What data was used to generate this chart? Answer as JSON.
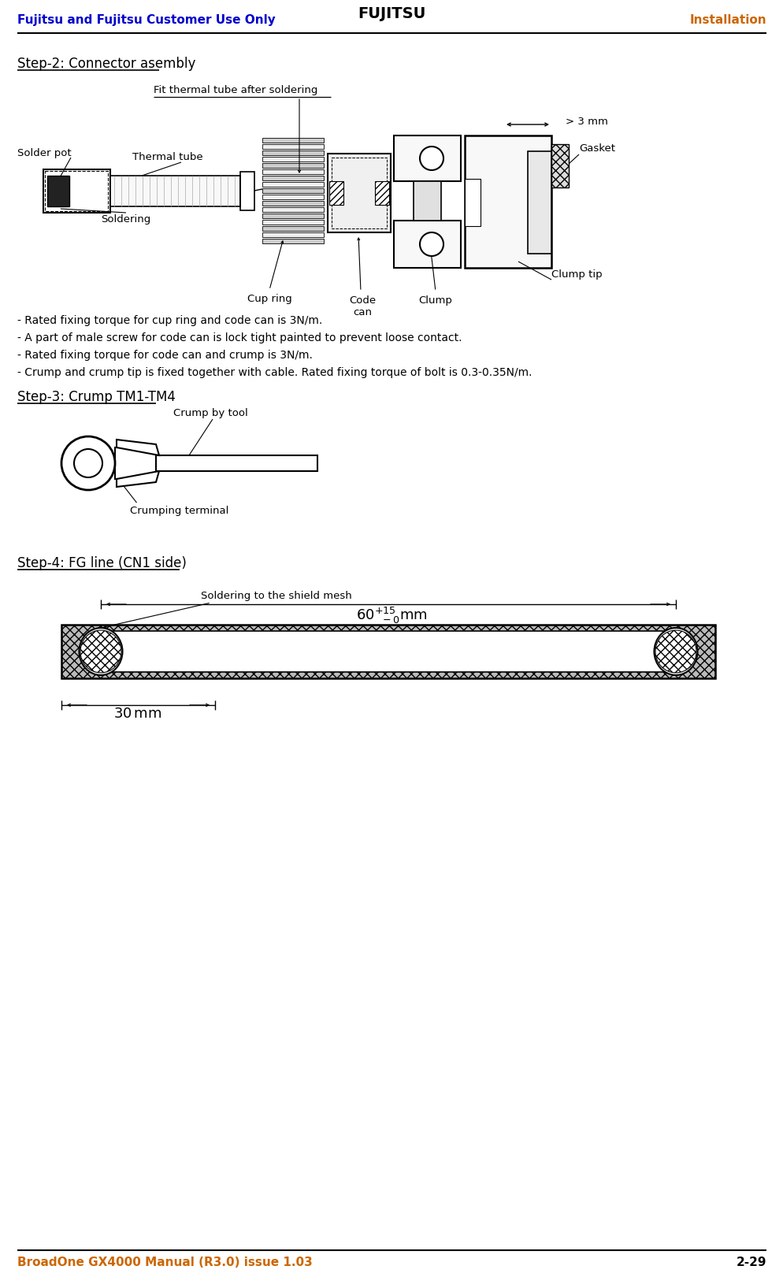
{
  "page_width": 9.95,
  "page_height": 16.21,
  "bg_color": "#ffffff",
  "header_left": "Fujitsu and Fujitsu Customer Use Only",
  "header_left_color": "#0000cc",
  "header_center": "FUJITSU",
  "header_right": "Installation",
  "header_right_color": "#cc6600",
  "footer_left": "BroadOne GX4000 Manual (R3.0) issue 1.03",
  "footer_left_color": "#cc6600",
  "footer_right": "2-29",
  "step2_title": "Step-2: Connector asembly",
  "step3_title": "Step-3: Crump TM1-TM4",
  "step4_title": "Step-4: FG line (CN1 side)",
  "bullets": [
    "- Rated fixing torque for cup ring and code can is 3N/m.",
    "- A part of male screw for code can is lock tight painted to prevent loose contact.",
    "- Rated fixing torque for code can and crump is 3N/m.",
    "- Crump and crump tip is fixed together with cable. Rated fixing torque of bolt is 0.3-0.35N/m."
  ],
  "label_fit_thermal": "Fit thermal tube after soldering",
  "label_3mm": "> 3 mm",
  "label_gasket": "Gasket",
  "label_solder_pot": "Solder pot",
  "label_thermal_tube": "Thermal tube",
  "label_soldering": "Soldering",
  "label_cup_ring": "Cup ring",
  "label_code_can": "Code\ncan",
  "label_clump": "Clump",
  "label_clump_tip": "Clump tip",
  "label_crump_by_tool": "Crump by tool",
  "label_crumping_terminal": "Crumping terminal",
  "label_soldering_shield": "Soldering to the shield mesh"
}
